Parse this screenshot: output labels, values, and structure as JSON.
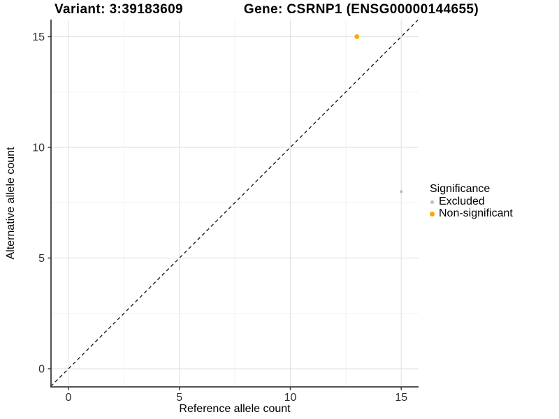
{
  "figure": {
    "title_left": "Variant: 3:39183609",
    "title_right": "Gene: CSRNP1 (ENSG00000144655)"
  },
  "chart_data": {
    "type": "scatter",
    "title_left": "Variant: 3:39183609",
    "title_right": "Gene: CSRNP1 (ENSG00000144655)",
    "xlabel": "Reference allele count",
    "ylabel": "Alternative allele count",
    "xlim": [
      -0.8,
      15.75
    ],
    "ylim": [
      -0.8,
      15.75
    ],
    "x_ticks": [
      0,
      5,
      10,
      15
    ],
    "y_ticks": [
      0,
      5,
      10,
      15
    ],
    "x_minor_ticks": [
      2.5,
      7.5,
      12.5
    ],
    "y_minor_ticks": [
      2.5,
      7.5,
      12.5
    ],
    "grid": true,
    "reference_line": {
      "type": "identity",
      "equation": "y = x",
      "style": "dashed",
      "color": "#111111"
    },
    "series": [
      {
        "name": "Excluded",
        "color": "#BEBEBE",
        "marker_radius": 2.2,
        "points": [
          {
            "x": 15,
            "y": 8
          }
        ]
      },
      {
        "name": "Non-significant",
        "color": "#FFA500",
        "marker_radius": 3.4,
        "points": [
          {
            "x": 13,
            "y": 15
          }
        ]
      }
    ],
    "legend": {
      "title": "Significance",
      "position": "right",
      "items": [
        {
          "label": "Excluded",
          "color": "#BEBEBE"
        },
        {
          "label": "Non-significant",
          "color": "#FFA500"
        }
      ]
    },
    "colors": {
      "grid_major": "#E4E4E4",
      "grid_minor": "#F2F2F2",
      "axis_line": "#3C3C3C",
      "tick_label": "#303030"
    }
  }
}
